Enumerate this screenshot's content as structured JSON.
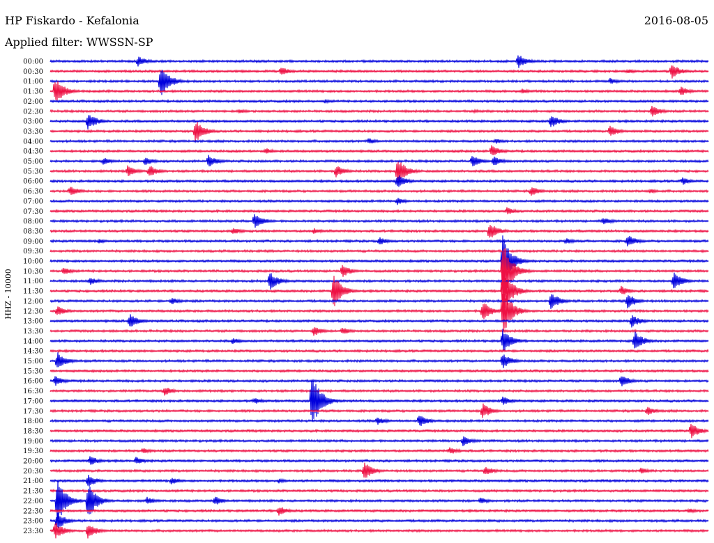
{
  "header": {
    "title": "HP Fiskardo - Kefalonia",
    "date": "2016-08-05",
    "filter": "Applied filter: WWSSN-SP"
  },
  "chart_data": {
    "type": "line",
    "channel_label": "HHZ - 10000",
    "colors": {
      "even_hour": "#0000dd",
      "half_hour": "#ee1144"
    },
    "rows": [
      "00:00",
      "00:30",
      "01:00",
      "01:30",
      "02:00",
      "02:30",
      "03:00",
      "03:30",
      "04:00",
      "04:30",
      "05:00",
      "05:30",
      "06:00",
      "06:30",
      "07:00",
      "07:30",
      "08:00",
      "08:30",
      "09:00",
      "09:30",
      "10:00",
      "10:30",
      "11:00",
      "11:30",
      "12:00",
      "12:30",
      "13:00",
      "13:30",
      "14:00",
      "14:30",
      "15:00",
      "15:30",
      "16:00",
      "16:30",
      "17:00",
      "17:30",
      "18:00",
      "18:30",
      "19:00",
      "19:30",
      "20:00",
      "20:30",
      "21:00",
      "21:30",
      "22:00",
      "22:30",
      "23:00",
      "23:30"
    ],
    "trace_minutes": 30,
    "events": [
      {
        "row": 0,
        "t": 4.0,
        "amp": 8
      },
      {
        "row": 0,
        "t": 21.3,
        "amp": 12
      },
      {
        "row": 1,
        "t": 10.5,
        "amp": 7
      },
      {
        "row": 1,
        "t": 26.3,
        "amp": 4
      },
      {
        "row": 1,
        "t": 28.3,
        "amp": 12
      },
      {
        "row": 2,
        "t": 5.0,
        "amp": 28
      },
      {
        "row": 2,
        "t": 25.5,
        "amp": 5
      },
      {
        "row": 3,
        "t": 0.2,
        "amp": 22
      },
      {
        "row": 3,
        "t": 21.5,
        "amp": 4
      },
      {
        "row": 3,
        "t": 28.7,
        "amp": 8
      },
      {
        "row": 4,
        "t": 12.5,
        "amp": 3
      },
      {
        "row": 5,
        "t": 8.6,
        "amp": 4
      },
      {
        "row": 5,
        "t": 19.3,
        "amp": 3
      },
      {
        "row": 5,
        "t": 27.4,
        "amp": 10
      },
      {
        "row": 6,
        "t": 1.7,
        "amp": 14
      },
      {
        "row": 6,
        "t": 22.8,
        "amp": 11
      },
      {
        "row": 7,
        "t": 6.6,
        "amp": 18
      },
      {
        "row": 7,
        "t": 25.5,
        "amp": 9
      },
      {
        "row": 8,
        "t": 14.5,
        "amp": 5
      },
      {
        "row": 8,
        "t": 20.3,
        "amp": 4
      },
      {
        "row": 9,
        "t": 9.8,
        "amp": 5
      },
      {
        "row": 9,
        "t": 20.1,
        "amp": 10
      },
      {
        "row": 10,
        "t": 2.4,
        "amp": 6
      },
      {
        "row": 10,
        "t": 4.3,
        "amp": 7
      },
      {
        "row": 10,
        "t": 7.2,
        "amp": 10
      },
      {
        "row": 10,
        "t": 19.2,
        "amp": 10
      },
      {
        "row": 10,
        "t": 20.2,
        "amp": 8
      },
      {
        "row": 11,
        "t": 3.5,
        "amp": 9
      },
      {
        "row": 11,
        "t": 4.5,
        "amp": 10
      },
      {
        "row": 11,
        "t": 13.0,
        "amp": 10
      },
      {
        "row": 11,
        "t": 15.8,
        "amp": 22
      },
      {
        "row": 12,
        "t": 15.8,
        "amp": 12
      },
      {
        "row": 12,
        "t": 28.8,
        "amp": 6
      },
      {
        "row": 13,
        "t": 0.9,
        "amp": 8
      },
      {
        "row": 13,
        "t": 21.9,
        "amp": 8
      },
      {
        "row": 13,
        "t": 27.3,
        "amp": 4
      },
      {
        "row": 14,
        "t": 15.8,
        "amp": 6
      },
      {
        "row": 15,
        "t": 20.8,
        "amp": 6
      },
      {
        "row": 16,
        "t": 9.3,
        "amp": 12
      },
      {
        "row": 16,
        "t": 25.2,
        "amp": 6
      },
      {
        "row": 17,
        "t": 8.3,
        "amp": 6
      },
      {
        "row": 17,
        "t": 12.0,
        "amp": 5
      },
      {
        "row": 17,
        "t": 20.0,
        "amp": 14
      },
      {
        "row": 18,
        "t": 2.2,
        "amp": 4
      },
      {
        "row": 18,
        "t": 15.0,
        "amp": 6
      },
      {
        "row": 18,
        "t": 23.5,
        "amp": 5
      },
      {
        "row": 18,
        "t": 26.3,
        "amp": 10
      },
      {
        "row": 20,
        "t": 20.6,
        "amp": 40
      },
      {
        "row": 21,
        "t": 0.6,
        "amp": 6
      },
      {
        "row": 21,
        "t": 13.3,
        "amp": 10
      },
      {
        "row": 21,
        "t": 20.6,
        "amp": 50
      },
      {
        "row": 22,
        "t": 1.8,
        "amp": 6
      },
      {
        "row": 22,
        "t": 10.0,
        "amp": 14
      },
      {
        "row": 22,
        "t": 28.4,
        "amp": 14
      },
      {
        "row": 23,
        "t": 12.9,
        "amp": 26
      },
      {
        "row": 23,
        "t": 20.6,
        "amp": 40
      },
      {
        "row": 23,
        "t": 26.0,
        "amp": 8
      },
      {
        "row": 24,
        "t": 5.5,
        "amp": 6
      },
      {
        "row": 24,
        "t": 22.8,
        "amp": 14
      },
      {
        "row": 24,
        "t": 26.3,
        "amp": 12
      },
      {
        "row": 25,
        "t": 0.3,
        "amp": 8
      },
      {
        "row": 25,
        "t": 19.7,
        "amp": 16
      },
      {
        "row": 25,
        "t": 20.6,
        "amp": 40
      },
      {
        "row": 26,
        "t": 3.6,
        "amp": 12
      },
      {
        "row": 26,
        "t": 26.5,
        "amp": 10
      },
      {
        "row": 27,
        "t": 12.0,
        "amp": 8
      },
      {
        "row": 27,
        "t": 13.3,
        "amp": 6
      },
      {
        "row": 28,
        "t": 8.3,
        "amp": 5
      },
      {
        "row": 28,
        "t": 20.6,
        "amp": 20
      },
      {
        "row": 28,
        "t": 26.6,
        "amp": 16
      },
      {
        "row": 30,
        "t": 0.3,
        "amp": 14
      },
      {
        "row": 30,
        "t": 20.6,
        "amp": 12
      },
      {
        "row": 32,
        "t": 0.2,
        "amp": 8
      },
      {
        "row": 32,
        "t": 26.0,
        "amp": 10
      },
      {
        "row": 33,
        "t": 5.2,
        "amp": 7
      },
      {
        "row": 34,
        "t": 9.3,
        "amp": 5
      },
      {
        "row": 34,
        "t": 11.9,
        "amp": 45
      },
      {
        "row": 34,
        "t": 20.6,
        "amp": 8
      },
      {
        "row": 35,
        "t": 19.7,
        "amp": 12
      },
      {
        "row": 35,
        "t": 27.2,
        "amp": 7
      },
      {
        "row": 36,
        "t": 14.9,
        "amp": 6
      },
      {
        "row": 36,
        "t": 16.8,
        "amp": 10
      },
      {
        "row": 37,
        "t": 29.2,
        "amp": 12
      },
      {
        "row": 38,
        "t": 18.8,
        "amp": 8
      },
      {
        "row": 39,
        "t": 4.2,
        "amp": 5
      },
      {
        "row": 39,
        "t": 18.2,
        "amp": 6
      },
      {
        "row": 40,
        "t": 1.8,
        "amp": 8
      },
      {
        "row": 40,
        "t": 3.9,
        "amp": 6
      },
      {
        "row": 41,
        "t": 14.3,
        "amp": 14
      },
      {
        "row": 41,
        "t": 19.8,
        "amp": 8
      },
      {
        "row": 41,
        "t": 26.9,
        "amp": 5
      },
      {
        "row": 42,
        "t": 1.7,
        "amp": 10
      },
      {
        "row": 42,
        "t": 5.5,
        "amp": 6
      },
      {
        "row": 42,
        "t": 10.4,
        "amp": 4
      },
      {
        "row": 44,
        "t": 0.3,
        "amp": 36
      },
      {
        "row": 44,
        "t": 1.7,
        "amp": 30
      },
      {
        "row": 44,
        "t": 4.4,
        "amp": 6
      },
      {
        "row": 44,
        "t": 7.5,
        "amp": 7
      },
      {
        "row": 44,
        "t": 19.6,
        "amp": 5
      },
      {
        "row": 45,
        "t": 10.4,
        "amp": 8
      },
      {
        "row": 45,
        "t": 29.1,
        "amp": 4
      },
      {
        "row": 46,
        "t": 0.3,
        "amp": 14
      },
      {
        "row": 47,
        "t": 0.2,
        "amp": 14
      },
      {
        "row": 47,
        "t": 1.7,
        "amp": 12
      }
    ]
  }
}
